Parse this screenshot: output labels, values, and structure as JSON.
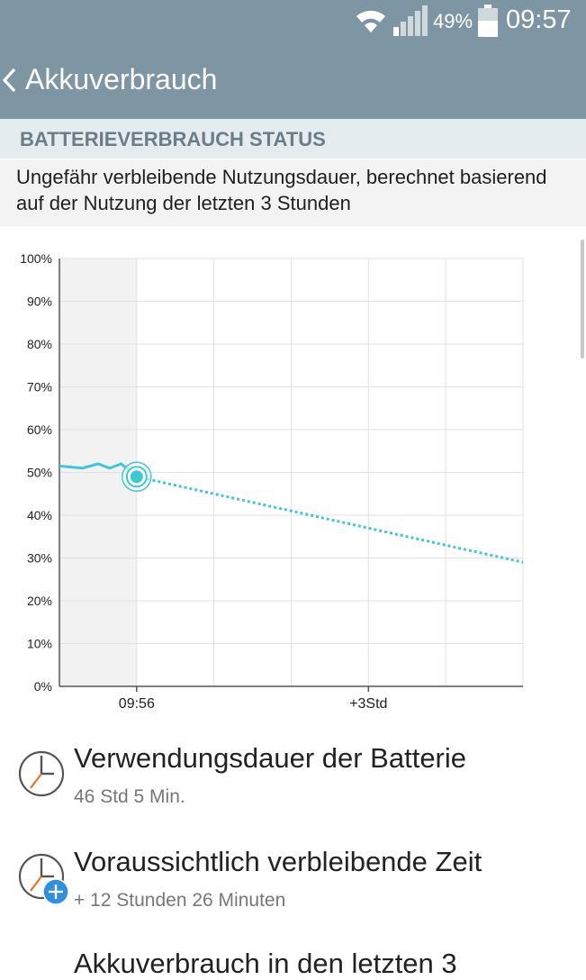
{
  "status_bar": {
    "battery_percent": "49%",
    "time": "09:57",
    "icons": [
      "wifi-icon",
      "signal-icon",
      "battery-icon"
    ]
  },
  "app_bar": {
    "back_icon": "chevron-left-icon",
    "title": "Akkuverbrauch"
  },
  "section": {
    "header": "BATTERIEVERBRAUCH STATUS",
    "description": "Ungefähr verbleibende Nutzungsdauer, berechnet basierend auf der Nutzung der letzten 3 Stunden"
  },
  "chart_data": {
    "type": "line",
    "y_ticks": [
      "100%",
      "90%",
      "80%",
      "70%",
      "60%",
      "50%",
      "40%",
      "30%",
      "20%",
      "10%",
      "0%"
    ],
    "x_labels": [
      "09:56",
      "+3Std"
    ],
    "ylim": [
      0,
      100
    ],
    "x_range_hours": [
      -1,
      5
    ],
    "series": [
      {
        "style": "solid",
        "x": [
          -1,
          -0.7,
          -0.5,
          -0.35,
          -0.2,
          0
        ],
        "y": [
          51.5,
          51,
          52,
          51,
          52,
          49
        ]
      },
      {
        "style": "dotted",
        "x": [
          0,
          5
        ],
        "y": [
          49,
          29
        ]
      }
    ],
    "marker": {
      "x": 0,
      "y": 49
    },
    "colors": {
      "line": "#3fc6d8",
      "past_area": "#f2f2f2",
      "grid": "#e2e2e2",
      "axis": "#555555"
    }
  },
  "items": [
    {
      "icon": "clock-icon",
      "title": "Verwendungsdauer der Batterie",
      "subtitle": "46 Std 5 Min."
    },
    {
      "icon": "clock-plus-icon",
      "title": "Voraussichtlich verbleibende Zeit",
      "subtitle": "+ 12 Stunden 26 Minuten"
    },
    {
      "icon": "",
      "title": "Akkuverbrauch in den letzten 3",
      "subtitle": ""
    }
  ]
}
